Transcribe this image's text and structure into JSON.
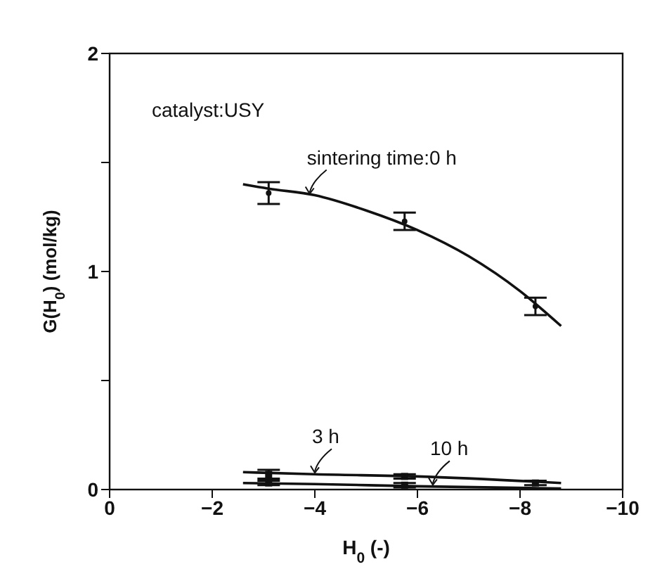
{
  "chart_data": {
    "type": "scatter",
    "xlabel": "H$_{0}$  (-)",
    "ylabel": "G(H$_{0}$)  (mol/kg)",
    "xlim": [
      0,
      -10
    ],
    "xticks": [
      0,
      -2,
      -4,
      -6,
      -8,
      -10
    ],
    "ylim": [
      0,
      2
    ],
    "yticks": [
      0,
      {
        "value": 0.5,
        "label": null
      },
      1,
      {
        "value": 1.5,
        "label": null
      },
      2
    ],
    "grid": false,
    "series": [
      {
        "color": "#111111",
        "marker": "circle",
        "x": [
          -3.1,
          -5.75,
          -8.3
        ],
        "values": [
          1.36,
          1.23,
          0.84
        ],
        "errors": [
          0.05,
          0.04,
          0.04
        ]
      },
      {
        "color": "#111111",
        "marker": "square",
        "x": [
          -3.1,
          -5.75,
          -8.3
        ],
        "values": [
          0.07,
          0.06,
          0.03
        ],
        "errors": [
          0.02,
          0.01,
          0.01
        ]
      },
      {
        "color": "#111111",
        "marker": "square",
        "x": [
          -3.1,
          -5.75
        ],
        "values": [
          0.03,
          0.02
        ],
        "errors": [
          0.01,
          0.01
        ]
      },
      {
        "type": "line",
        "color": "#111111",
        "marker": "none",
        "x": [
          -2.6,
          -3.1,
          -4,
          -5,
          -6,
          -7,
          -8,
          -8.8
        ],
        "values": [
          1.4,
          1.38,
          1.35,
          1.28,
          1.19,
          1.07,
          0.91,
          0.75
        ]
      },
      {
        "type": "line",
        "color": "#111111",
        "marker": "none",
        "x": [
          -2.6,
          -4,
          -6,
          -8.8
        ],
        "values": [
          0.08,
          0.07,
          0.06,
          0.03
        ]
      },
      {
        "type": "line",
        "color": "#111111",
        "marker": "none",
        "x": [
          -2.6,
          -4,
          -6,
          -8.8
        ],
        "values": [
          0.03,
          0.025,
          0.015,
          0.005
        ]
      }
    ],
    "annotations": [
      "catalyst:USY",
      {
        "text": "sintering time:0 h",
        "x": -3.9,
        "y": 1.35
      },
      {
        "text": "3 h",
        "x": -4,
        "y": 0.07
      },
      {
        "text": "10 h",
        "x": -6.3,
        "y": 0.015
      }
    ]
  }
}
